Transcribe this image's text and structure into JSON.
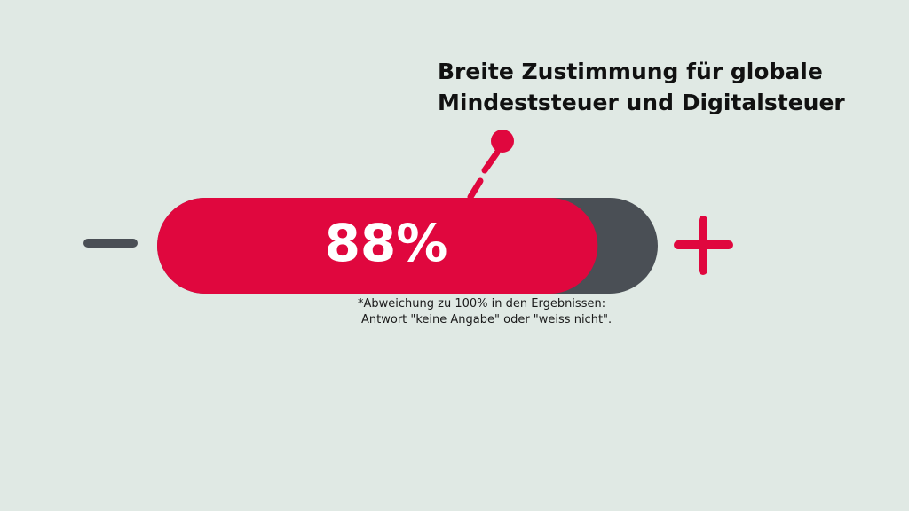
{
  "chart_data": {
    "type": "bar",
    "title_lines": [
      "Breite Zustimmung für globale",
      "Mindeststeuer und Digitalsteuer"
    ],
    "value": 88,
    "value_label": "88%",
    "max": 100,
    "footnote_lines": [
      "*Abweichung zu 100% in den Ergebnissen:",
      "Antwort \"keine Angabe\" oder \"weiss nicht\"."
    ]
  },
  "colors": {
    "background": "#e0e9e4",
    "accent": "#e0073e",
    "track": "#4a4f55",
    "text": "#111111"
  },
  "icons": {
    "minus": "minus-icon",
    "plus": "plus-icon",
    "pointer": "pin-pointer-icon"
  }
}
